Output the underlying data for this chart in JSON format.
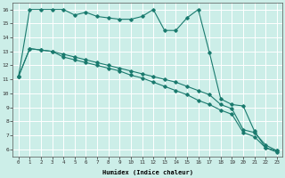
{
  "title": "",
  "xlabel": "Humidex (Indice chaleur)",
  "ylabel": "",
  "bg_color": "#cceee8",
  "grid_color": "#ffffff",
  "line_color": "#1a7a6e",
  "xlim": [
    -0.5,
    23.5
  ],
  "ylim": [
    5.5,
    16.5
  ],
  "xticks": [
    0,
    1,
    2,
    3,
    4,
    5,
    6,
    7,
    8,
    9,
    10,
    11,
    12,
    13,
    14,
    15,
    16,
    17,
    18,
    19,
    20,
    21,
    22,
    23
  ],
  "yticks": [
    6,
    7,
    8,
    9,
    10,
    11,
    12,
    13,
    14,
    15,
    16
  ],
  "line1": [
    11.2,
    16.0,
    16.0,
    16.0,
    16.0,
    15.6,
    15.8,
    15.5,
    15.4,
    15.3,
    15.3,
    15.5,
    16.0,
    14.5,
    14.5,
    15.4,
    16.0,
    12.9,
    9.6,
    9.2,
    9.1,
    7.3,
    6.1,
    5.9
  ],
  "line2": [
    11.2,
    13.2,
    13.1,
    13.0,
    12.8,
    12.6,
    12.4,
    12.2,
    12.0,
    11.8,
    11.6,
    11.4,
    11.2,
    11.0,
    10.8,
    10.5,
    10.2,
    9.9,
    9.2,
    8.9,
    7.4,
    7.2,
    6.3,
    5.9
  ],
  "line3": [
    11.2,
    13.2,
    13.1,
    13.0,
    12.6,
    12.4,
    12.2,
    12.0,
    11.8,
    11.6,
    11.3,
    11.1,
    10.8,
    10.5,
    10.2,
    9.9,
    9.5,
    9.2,
    8.8,
    8.5,
    7.2,
    6.9,
    6.1,
    5.8
  ]
}
